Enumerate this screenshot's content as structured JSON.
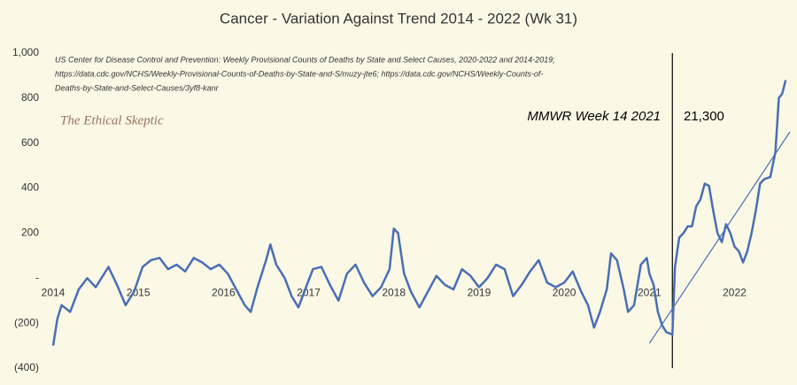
{
  "chart_data": {
    "type": "line",
    "title": "Cancer - Variation Against Trend  2014 - 2022 (Wk 31)",
    "source": [
      "US Center for Disease Control and Prevention: Weekly Provisional Counts of Deaths by State and Select Causes, 2020-2022 and 2014-2019;",
      "https://data.cdc.gov/NCHS/Weekly-Provisional-Counts-of-Deaths-by-State-and-S/muzy-jte6; https://data.cdc.gov/NCHS/Weekly-Counts-of-",
      "Deaths-by-State-and-Select-Causes/3yf8-kanr"
    ],
    "watermark": "The Ethical Skeptic",
    "annotations": [
      "MMWR Week 14  2021",
      "21,300"
    ],
    "marker_x": 2021.27,
    "xlim": [
      2014,
      2022.65
    ],
    "xticks": [
      2014,
      2015,
      2016,
      2017,
      2018,
      2019,
      2020,
      2021,
      2022
    ],
    "ylim": [
      -400,
      1000
    ],
    "yticks": [
      {
        "value": 1000,
        "label": "1,000"
      },
      800,
      600,
      400,
      200,
      {
        "value": 0,
        "label": "-"
      },
      {
        "value": -200,
        "label": "(200)"
      },
      {
        "value": -400,
        "label": "(400)"
      }
    ],
    "series": [
      {
        "color": "#4a6eb4",
        "x": [
          2014.0,
          2014.05,
          2014.1,
          2014.2,
          2014.3,
          2014.4,
          2014.5,
          2014.6,
          2014.65,
          2014.75,
          2014.85,
          2014.95,
          2015.05,
          2015.15,
          2015.25,
          2015.35,
          2015.45,
          2015.55,
          2015.65,
          2015.75,
          2015.85,
          2015.95,
          2016.05,
          2016.15,
          2016.25,
          2016.32,
          2016.4,
          2016.5,
          2016.55,
          2016.62,
          2016.72,
          2016.8,
          2016.88,
          2016.95,
          2017.05,
          2017.15,
          2017.25,
          2017.35,
          2017.45,
          2017.55,
          2017.65,
          2017.75,
          2017.85,
          2017.95,
          2018.0,
          2018.05,
          2018.12,
          2018.2,
          2018.3,
          2018.4,
          2018.5,
          2018.6,
          2018.7,
          2018.8,
          2018.9,
          2019.0,
          2019.1,
          2019.2,
          2019.3,
          2019.4,
          2019.5,
          2019.6,
          2019.7,
          2019.8,
          2019.9,
          2020.0,
          2020.1,
          2020.2,
          2020.28,
          2020.35,
          2020.42,
          2020.5,
          2020.55,
          2020.62,
          2020.7,
          2020.75,
          2020.82,
          2020.9,
          2020.97,
          2021.0,
          2021.05,
          2021.1,
          2021.15,
          2021.2,
          2021.27,
          2021.3,
          2021.35,
          2021.4,
          2021.45,
          2021.5,
          2021.55,
          2021.6,
          2021.65,
          2021.7,
          2021.75,
          2021.8,
          2021.85,
          2021.9,
          2021.95,
          2022.0,
          2022.05,
          2022.1,
          2022.15,
          2022.2,
          2022.25,
          2022.3,
          2022.35,
          2022.42,
          2022.48,
          2022.52,
          2022.56,
          2022.6
        ],
        "values": [
          -300,
          -180,
          -120,
          -150,
          -50,
          0,
          -40,
          20,
          50,
          -30,
          -120,
          -60,
          50,
          80,
          90,
          40,
          60,
          30,
          90,
          70,
          40,
          60,
          20,
          -50,
          -120,
          -150,
          -40,
          80,
          150,
          60,
          0,
          -80,
          -130,
          -60,
          40,
          50,
          -30,
          -100,
          20,
          60,
          -20,
          -80,
          -40,
          40,
          220,
          200,
          20,
          -60,
          -130,
          -60,
          10,
          -30,
          -50,
          40,
          10,
          -40,
          0,
          60,
          40,
          -80,
          -30,
          30,
          80,
          -20,
          -40,
          -20,
          30,
          -60,
          -120,
          -220,
          -150,
          -50,
          110,
          80,
          -50,
          -150,
          -120,
          60,
          90,
          20,
          -30,
          -150,
          -210,
          -240,
          -250,
          50,
          180,
          200,
          230,
          230,
          320,
          350,
          420,
          410,
          300,
          200,
          160,
          240,
          200,
          140,
          120,
          70,
          120,
          200,
          300,
          420,
          440,
          450,
          560,
          800,
          820,
          880
        ]
      },
      {
        "color": "#4a6eb4",
        "x": [
          2021.0,
          2022.65
        ],
        "values": [
          -290,
          650
        ]
      }
    ]
  }
}
